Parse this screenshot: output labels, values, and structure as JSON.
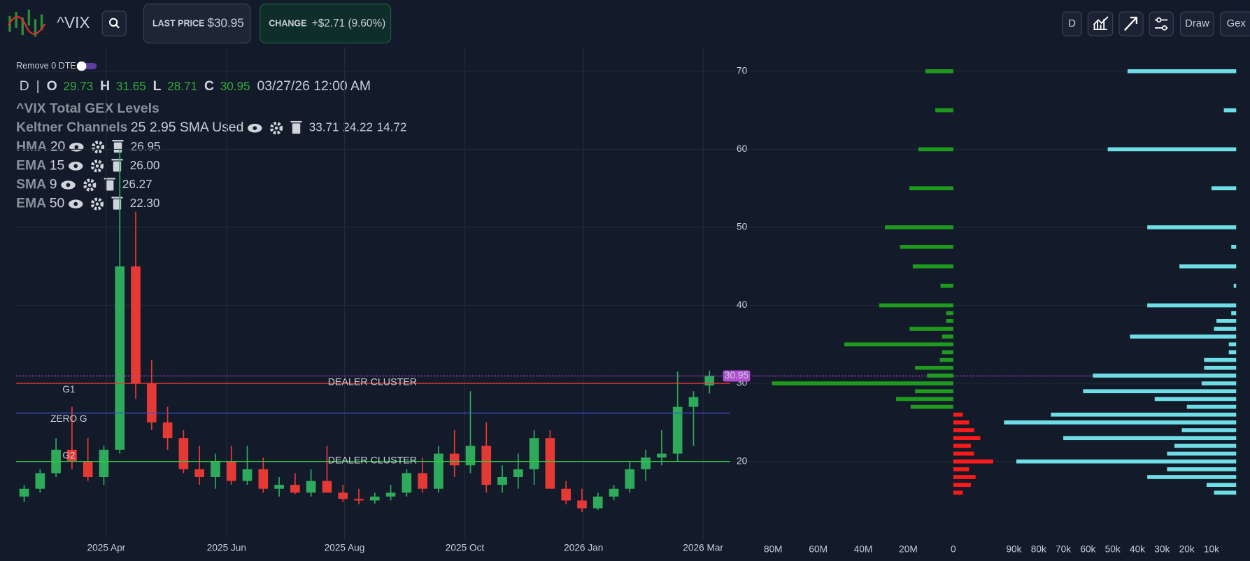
{
  "header": {
    "symbol": "^VIX",
    "last_price": {
      "label": "LAST PRICE",
      "value": "$30.95"
    },
    "change": {
      "label": "CHANGE",
      "value": "+$2.71 (9.60%)"
    }
  },
  "toolbar": {
    "interval": "D",
    "draw": "Draw",
    "gex": "Gex"
  },
  "toggle": {
    "label": "Remove 0 DTE"
  },
  "ohlc": {
    "interval": "D",
    "separator": "|",
    "o_label": "O",
    "o": "29.73",
    "h_label": "H",
    "h": "31.65",
    "l_label": "L",
    "l": "28.71",
    "c_label": "C",
    "c": "30.95",
    "date": "03/27/26 12:00 AM"
  },
  "indicators": [
    {
      "name": "^VIX Total GEX Levels"
    },
    {
      "name": "Keltner Channels",
      "params": "25 2.95 SMA Used",
      "values": [
        "33.71",
        "24.22",
        "14.72"
      ],
      "color": "#8e1e8e"
    },
    {
      "name": "HMA",
      "params": "20",
      "values": [
        "26.95"
      ],
      "color": "#e8e84c"
    },
    {
      "name": "EMA",
      "params": "15",
      "values": [
        "26.00"
      ],
      "color": "#c62828"
    },
    {
      "name": "SMA",
      "params": "9",
      "values": [
        "26.27"
      ],
      "color": "#f0a030"
    },
    {
      "name": "EMA",
      "params": "50",
      "values": [
        "22.30"
      ],
      "color": "#2f3fd0"
    }
  ],
  "chart_data": [
    {
      "type": "candlestick",
      "xlim": [
        0,
        44
      ],
      "xticks": [
        {
          "value": 5.65,
          "label": "2025 Apr"
        },
        {
          "value": 13.2,
          "label": "2025 Jun"
        },
        {
          "value": 20.6,
          "label": "2025 Aug"
        },
        {
          "value": 28.15,
          "label": "2025 Oct"
        },
        {
          "value": 35.6,
          "label": "2026 Jan"
        },
        {
          "value": 43.1,
          "label": "2026 Mar"
        }
      ],
      "ylim": [
        10,
        73
      ],
      "yticks": [
        20,
        30,
        40,
        50,
        60,
        70
      ],
      "grid": true,
      "open": [
        15.5,
        16.5,
        18.5,
        21.5,
        20,
        18,
        21.5,
        45,
        30,
        25,
        23,
        19,
        18,
        20,
        17.5,
        19,
        16.5,
        17,
        16,
        17.5,
        16,
        15.2,
        15,
        15.5,
        16,
        18.5,
        16.5,
        21,
        19.5,
        22,
        17,
        18,
        19,
        23,
        16.5,
        15,
        14,
        15.5,
        16.5,
        19,
        20.5,
        21,
        27,
        29.73
      ],
      "high": [
        17,
        19,
        23,
        27,
        23,
        22,
        60,
        52,
        33,
        27,
        24,
        22,
        21,
        22,
        22,
        20.5,
        18,
        18.5,
        19,
        22,
        17,
        16.5,
        16,
        17,
        19,
        20.5,
        22,
        24,
        29,
        25,
        19.5,
        21,
        24,
        24,
        17.5,
        16.5,
        16,
        17,
        20,
        21.5,
        24,
        31.5,
        29,
        31.65
      ],
      "low": [
        14.8,
        16,
        18,
        19,
        17.5,
        17,
        21,
        28,
        24,
        21.5,
        18.5,
        17,
        16.5,
        17,
        17,
        16,
        15.5,
        15.8,
        15.5,
        16.5,
        14.8,
        14.5,
        14.6,
        15,
        15.5,
        16,
        16,
        18,
        18.5,
        16,
        16,
        16.5,
        17,
        17,
        14.5,
        13.5,
        13.8,
        15,
        16,
        17.5,
        19.5,
        20,
        22,
        28.71
      ],
      "close": [
        16.5,
        18.5,
        21.5,
        20,
        18,
        21.5,
        45,
        30,
        25,
        23,
        19,
        18,
        20,
        17.5,
        19,
        16.5,
        17,
        16,
        17.5,
        16,
        15.2,
        15,
        15.5,
        16,
        18.5,
        16.5,
        21,
        19.5,
        22,
        17,
        18,
        19,
        23,
        16.5,
        15,
        14,
        15.5,
        16.5,
        19,
        20.5,
        21,
        27,
        28.24,
        30.95
      ],
      "up_color": "#2eaa5a",
      "down_color": "#e53935",
      "current_price": 30.95,
      "current_price_color": "#b04fd0",
      "levels": [
        {
          "name": "G1",
          "label": "DEALER CLUSTER",
          "value": 30,
          "color": "#e53935"
        },
        {
          "name": "ZERO G",
          "value": 26.2,
          "color": "#3f51d8"
        },
        {
          "name": "G2",
          "label": "DEALER CLUSTER",
          "value": 20,
          "color": "#2ecc40"
        }
      ]
    },
    {
      "type": "bar",
      "orientation": "horizontal",
      "categories": [
        70,
        65,
        60,
        55,
        50,
        47.5,
        45,
        42.5,
        40,
        39,
        38,
        37,
        36,
        35,
        34,
        33,
        32,
        31,
        30,
        29,
        28,
        27,
        26,
        25,
        24,
        23,
        22,
        21,
        20,
        19,
        18,
        17,
        16
      ],
      "values": [
        12400000,
        8000000,
        15500000,
        19500000,
        30400000,
        23700000,
        18000000,
        5700000,
        32900000,
        3200000,
        3200000,
        19400000,
        5000000,
        48400000,
        5000000,
        6000000,
        17000000,
        11700000,
        80500000,
        17000000,
        25400000,
        19000000,
        -4200000,
        -7000000,
        -9200000,
        -12000000,
        -7800000,
        -9200000,
        -17700000,
        -7000000,
        -9900000,
        -7800000,
        -4200000
      ],
      "positive_color": "#1f9a1f",
      "negative_color": "#ff1a1a",
      "xlim": [
        83500000,
        -19100000
      ],
      "xticks": [
        {
          "value": 80000000,
          "label": "80M"
        },
        {
          "value": 60000000,
          "label": "60M"
        },
        {
          "value": 40000000,
          "label": "40M"
        },
        {
          "value": 20000000,
          "label": "20M"
        },
        0
      ]
    },
    {
      "type": "bar",
      "orientation": "horizontal",
      "categories": [
        70,
        65,
        60,
        55,
        50,
        47.5,
        45,
        42.5,
        40,
        39,
        38,
        37,
        36,
        35,
        34,
        33,
        32,
        31,
        30,
        29,
        28,
        27,
        26,
        25,
        24,
        23,
        22,
        21,
        20,
        19,
        18,
        17,
        16
      ],
      "values": [
        44000,
        5000,
        52000,
        10000,
        36000,
        2000,
        23000,
        1000,
        36000,
        2000,
        8000,
        9000,
        43000,
        3000,
        3000,
        13000,
        13000,
        58000,
        14000,
        62000,
        33000,
        20000,
        75000,
        94000,
        22000,
        70000,
        25000,
        28000,
        89000,
        28000,
        36000,
        12000,
        9000
      ],
      "color": "#6fdde6",
      "xlim": [
        100000,
        0
      ],
      "xticks": [
        {
          "value": 90000,
          "label": "90k"
        },
        {
          "value": 80000,
          "label": "80k"
        },
        {
          "value": 70000,
          "label": "70k"
        },
        {
          "value": 60000,
          "label": "60k"
        },
        {
          "value": 50000,
          "label": "50k"
        },
        {
          "value": 40000,
          "label": "40k"
        },
        {
          "value": 30000,
          "label": "30k"
        },
        {
          "value": 20000,
          "label": "20k"
        },
        {
          "value": 10000,
          "label": "10k"
        }
      ]
    }
  ]
}
